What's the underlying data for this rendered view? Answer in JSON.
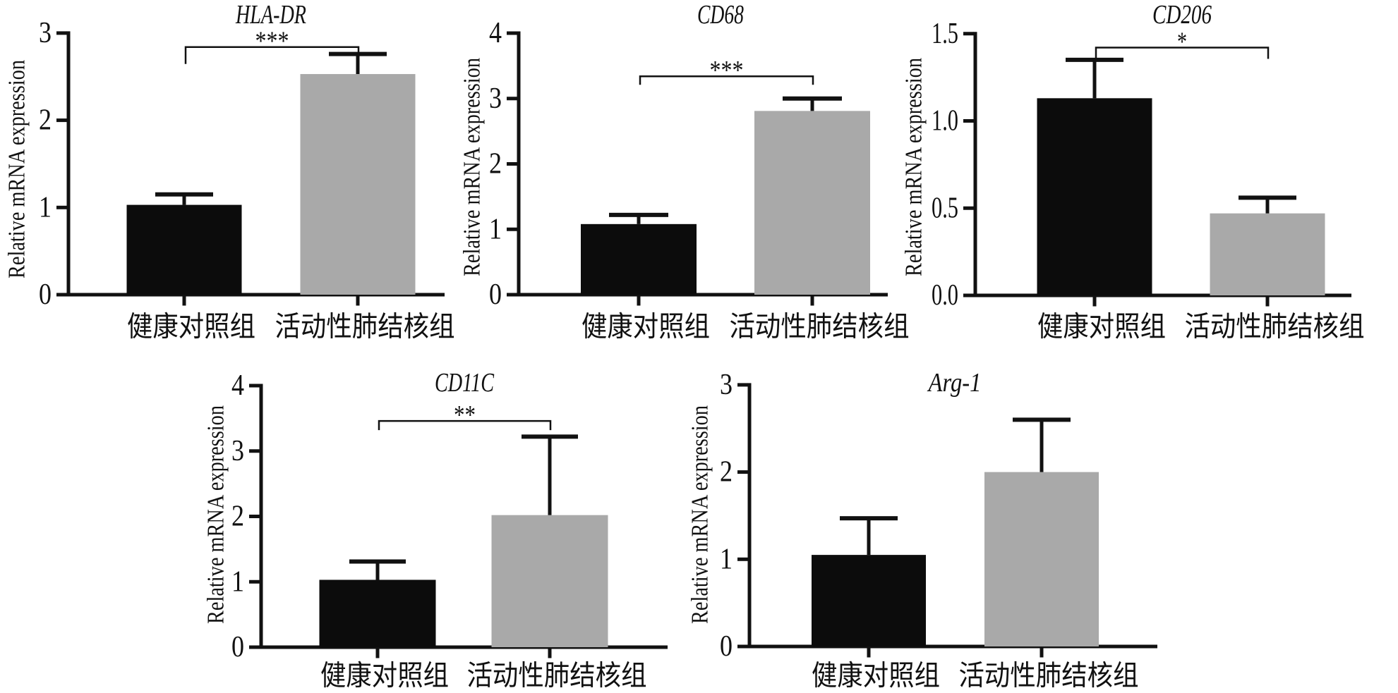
{
  "figure": {
    "type": "bar-chart-panel-figure",
    "panels_count": 5,
    "y_axis_label": "Relative mRNA expression",
    "categories": [
      "健康对照组",
      "活动性肺结核组"
    ],
    "bar_colors": {
      "healthy_control": "#0c0c0c",
      "active_tb": "#a9a9a9"
    },
    "axis_color": "#111111"
  },
  "chart_data": [
    {
      "type": "bar",
      "title": "HLA-DR",
      "ylabel": "Relative mRNA expression",
      "categories": [
        "健康对照组",
        "活动性肺结核组"
      ],
      "values": [
        1.03,
        2.53
      ],
      "errors": [
        0.12,
        0.23
      ],
      "ylim": [
        0,
        3
      ],
      "yticks": [
        "0",
        "1",
        "2",
        "3"
      ],
      "significance": "***",
      "significance_level_value": 2.84
    },
    {
      "type": "bar",
      "title": "CD68",
      "ylabel": "Relative mRNA expression",
      "categories": [
        "健康对照组",
        "活动性肺结核组"
      ],
      "values": [
        1.08,
        2.81
      ],
      "errors": [
        0.14,
        0.19
      ],
      "ylim": [
        0,
        4
      ],
      "yticks": [
        "0",
        "1",
        "2",
        "3",
        "4"
      ],
      "significance": "***",
      "significance_level_value": 3.34
    },
    {
      "type": "bar",
      "title": "CD206",
      "ylabel": "Relative mRNA expression",
      "categories": [
        "健康对照组",
        "活动性肺结核组"
      ],
      "values": [
        1.13,
        0.47
      ],
      "errors": [
        0.22,
        0.09
      ],
      "ylim": [
        0,
        1.5
      ],
      "yticks": [
        "0.0",
        "0.5",
        "1.0",
        "1.5"
      ],
      "significance": "*",
      "significance_level_value": 1.42
    },
    {
      "type": "bar",
      "title": "CD11C",
      "ylabel": "Relative mRNA expression",
      "categories": [
        "健康对照组",
        "活动性肺结核组"
      ],
      "values": [
        1.03,
        2.02
      ],
      "errors": [
        0.28,
        1.2
      ],
      "ylim": [
        0,
        4
      ],
      "yticks": [
        "0",
        "1",
        "2",
        "3",
        "4"
      ],
      "significance": "**",
      "significance_level_value": 3.46
    },
    {
      "type": "bar",
      "title": "Arg-1",
      "ylabel": "Relative mRNA expression",
      "categories": [
        "健康对照组",
        "活动性肺结核组"
      ],
      "values": [
        1.05,
        2.0
      ],
      "errors": [
        0.42,
        0.6
      ],
      "ylim": [
        0,
        3
      ],
      "yticks": [
        "0",
        "1",
        "2",
        "3"
      ],
      "significance": null
    }
  ]
}
